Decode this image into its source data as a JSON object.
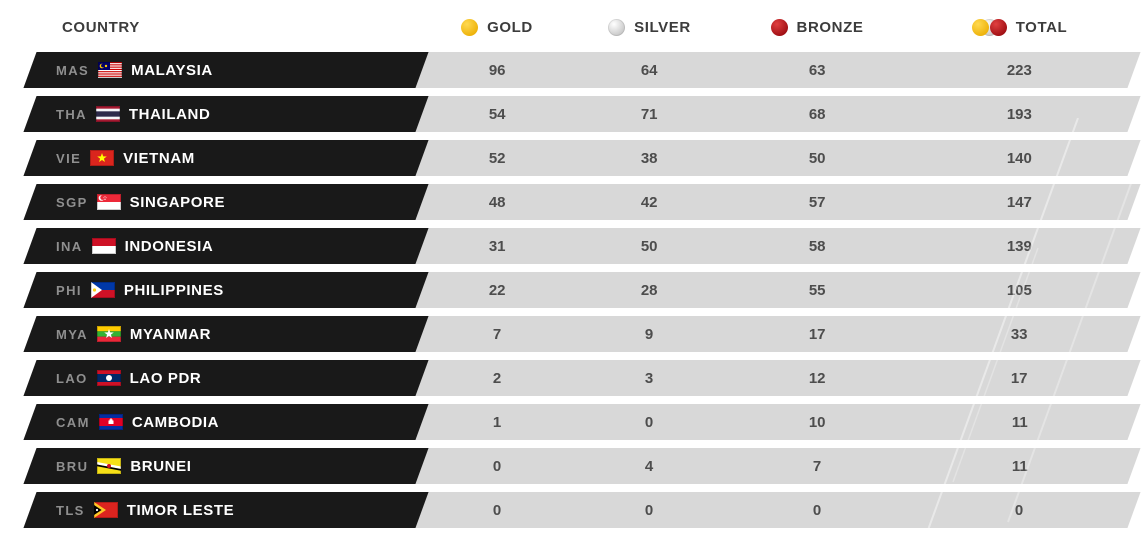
{
  "header": {
    "country_label": "COUNTRY",
    "columns": [
      {
        "label": "GOLD",
        "icon": "gold-medal-icon"
      },
      {
        "label": "SILVER",
        "icon": "silver-medal-icon"
      },
      {
        "label": "BRONZE",
        "icon": "bronze-medal-icon"
      },
      {
        "label": "TOTAL",
        "icon": "total-medals-icon"
      }
    ]
  },
  "rows": [
    {
      "code": "MAS",
      "flag": "malaysia",
      "country": "MALAYSIA",
      "gold": 96,
      "silver": 64,
      "bronze": 63,
      "total": 223
    },
    {
      "code": "THA",
      "flag": "thailand",
      "country": "THAILAND",
      "gold": 54,
      "silver": 71,
      "bronze": 68,
      "total": 193
    },
    {
      "code": "VIE",
      "flag": "vietnam",
      "country": "VIETNAM",
      "gold": 52,
      "silver": 38,
      "bronze": 50,
      "total": 140
    },
    {
      "code": "SGP",
      "flag": "singapore",
      "country": "SINGAPORE",
      "gold": 48,
      "silver": 42,
      "bronze": 57,
      "total": 147
    },
    {
      "code": "INA",
      "flag": "indonesia",
      "country": "INDONESIA",
      "gold": 31,
      "silver": 50,
      "bronze": 58,
      "total": 139
    },
    {
      "code": "PHI",
      "flag": "philippines",
      "country": "PHILIPPINES",
      "gold": 22,
      "silver": 28,
      "bronze": 55,
      "total": 105
    },
    {
      "code": "MYA",
      "flag": "myanmar",
      "country": "MYANMAR",
      "gold": 7,
      "silver": 9,
      "bronze": 17,
      "total": 33
    },
    {
      "code": "LAO",
      "flag": "laos",
      "country": "LAO PDR",
      "gold": 2,
      "silver": 3,
      "bronze": 12,
      "total": 17
    },
    {
      "code": "CAM",
      "flag": "cambodia",
      "country": "CAMBODIA",
      "gold": 1,
      "silver": 0,
      "bronze": 10,
      "total": 11
    },
    {
      "code": "BRU",
      "flag": "brunei",
      "country": "BRUNEI",
      "gold": 0,
      "silver": 4,
      "bronze": 7,
      "total": 11
    },
    {
      "code": "TLS",
      "flag": "timorleste",
      "country": "TIMOR LESTE",
      "gold": 0,
      "silver": 0,
      "bronze": 0,
      "total": 0
    }
  ],
  "colors": {
    "gold": "#f0b81c",
    "silver": "#d9d9d9",
    "bronze": "#b01118",
    "row_black": "#191919",
    "row_gray": "#d8d8d8",
    "header_text": "#3c3c3c",
    "number_text": "#4d4d4d",
    "code_text": "#8f8f8f"
  },
  "chart_data": {
    "type": "table",
    "title": "Medal Tally",
    "columns": [
      "COUNTRY",
      "GOLD",
      "SILVER",
      "BRONZE",
      "TOTAL"
    ],
    "rows": [
      [
        "MAS MALAYSIA",
        96,
        64,
        63,
        223
      ],
      [
        "THA THAILAND",
        54,
        71,
        68,
        193
      ],
      [
        "VIE VIETNAM",
        52,
        38,
        50,
        140
      ],
      [
        "SGP SINGAPORE",
        48,
        42,
        57,
        147
      ],
      [
        "INA INDONESIA",
        31,
        50,
        58,
        139
      ],
      [
        "PHI PHILIPPINES",
        22,
        28,
        55,
        105
      ],
      [
        "MYA MYANMAR",
        7,
        9,
        17,
        33
      ],
      [
        "LAO LAO PDR",
        2,
        3,
        12,
        17
      ],
      [
        "CAM CAMBODIA",
        1,
        0,
        10,
        11
      ],
      [
        "BRU BRUNEI",
        0,
        4,
        7,
        11
      ],
      [
        "TLS TIMOR LESTE",
        0,
        0,
        0,
        0
      ]
    ]
  }
}
